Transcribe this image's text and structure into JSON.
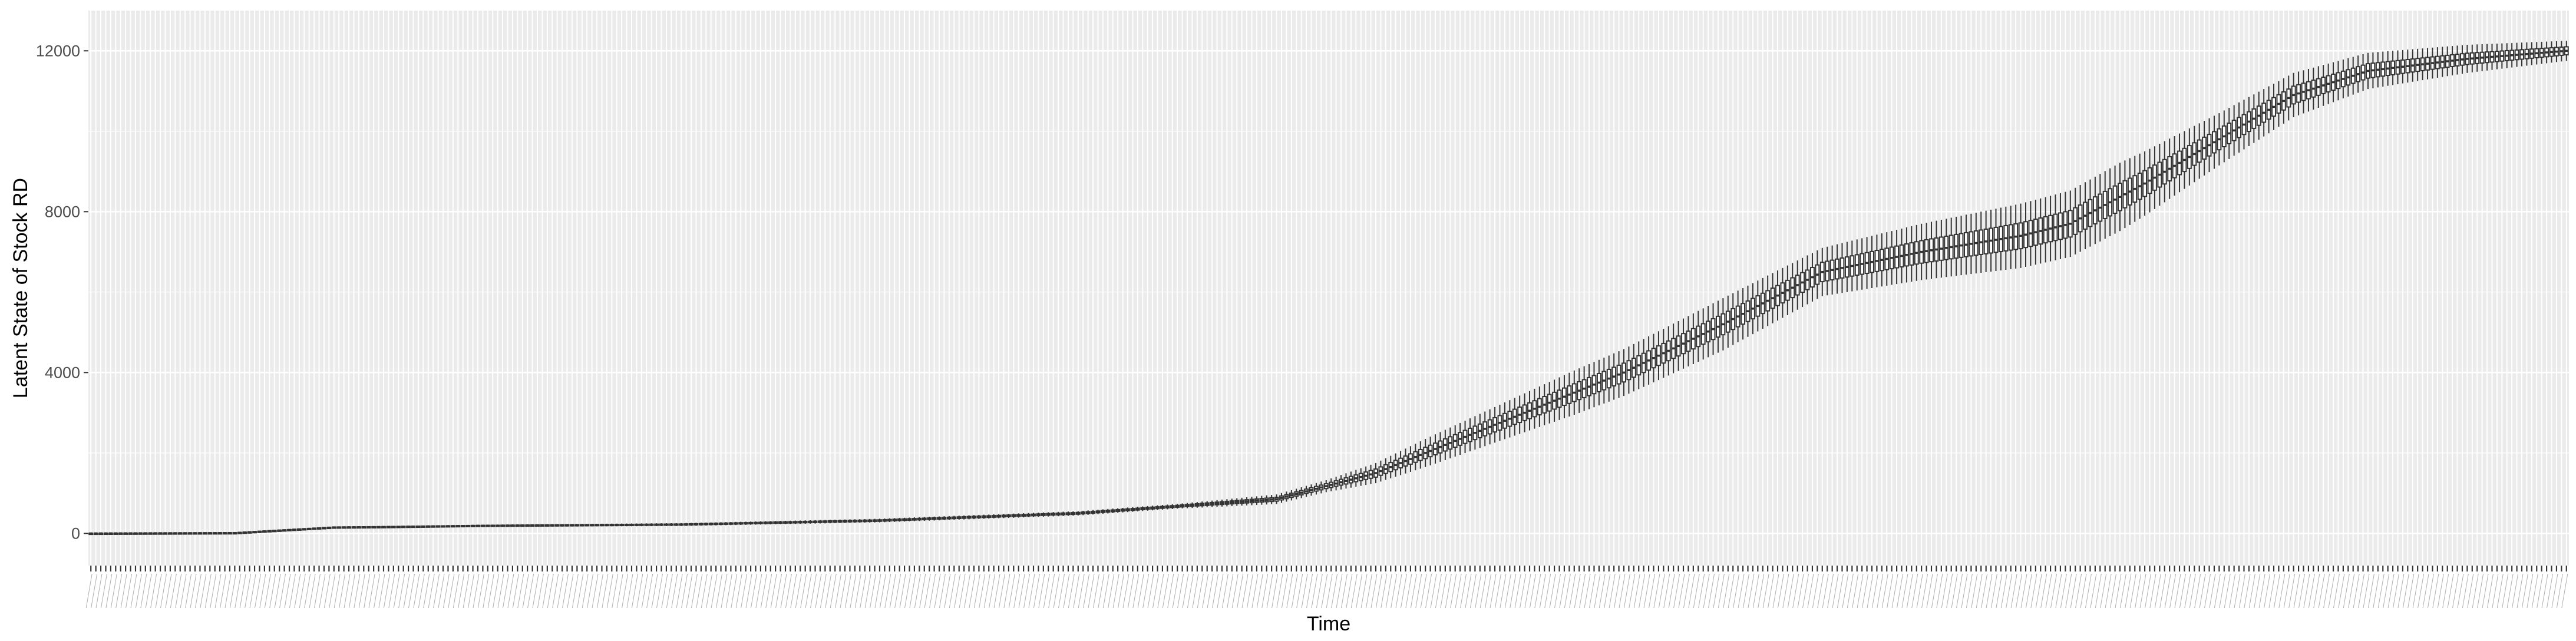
{
  "chart_data": {
    "type": "boxplot",
    "title": "",
    "xlabel": "Time",
    "ylabel": "Latent State of Stock RD",
    "ylim": [
      -800,
      13000
    ],
    "y_ticks": [
      0,
      4000,
      8000,
      12000
    ],
    "y_tick_labels": [
      "0",
      "4000",
      "8000",
      "12000"
    ],
    "x_categories_count": 500,
    "x_tick_labels_legible": false,
    "grid": true,
    "legend": "none",
    "colors": {
      "panel_background": "#ebebeb",
      "grid_line": "#ffffff",
      "box": "#333333",
      "tick_label": "#4d4d4d"
    },
    "series": [
      {
        "median_trajectory": {
          "t": [
            1,
            30,
            40,
            50,
            60,
            80,
            120,
            160,
            200,
            240,
            260,
            290,
            310,
            330,
            350,
            370,
            390,
            400,
            415,
            430,
            445,
            460,
            480,
            500
          ],
          "value": [
            0,
            10,
            80,
            150,
            160,
            190,
            220,
            320,
            500,
            850,
            1500,
            3000,
            4000,
            5200,
            6500,
            7000,
            7400,
            7700,
            8700,
            9800,
            10900,
            11500,
            11800,
            12000
          ]
        },
        "spread_trajectory": {
          "t": [
            1,
            220,
            250,
            270,
            300,
            330,
            350,
            370,
            390,
            410,
            430,
            460,
            480,
            500
          ],
          "half_range": [
            10,
            60,
            150,
            350,
            550,
            650,
            600,
            700,
            800,
            850,
            650,
            450,
            350,
            250
          ]
        }
      }
    ]
  }
}
